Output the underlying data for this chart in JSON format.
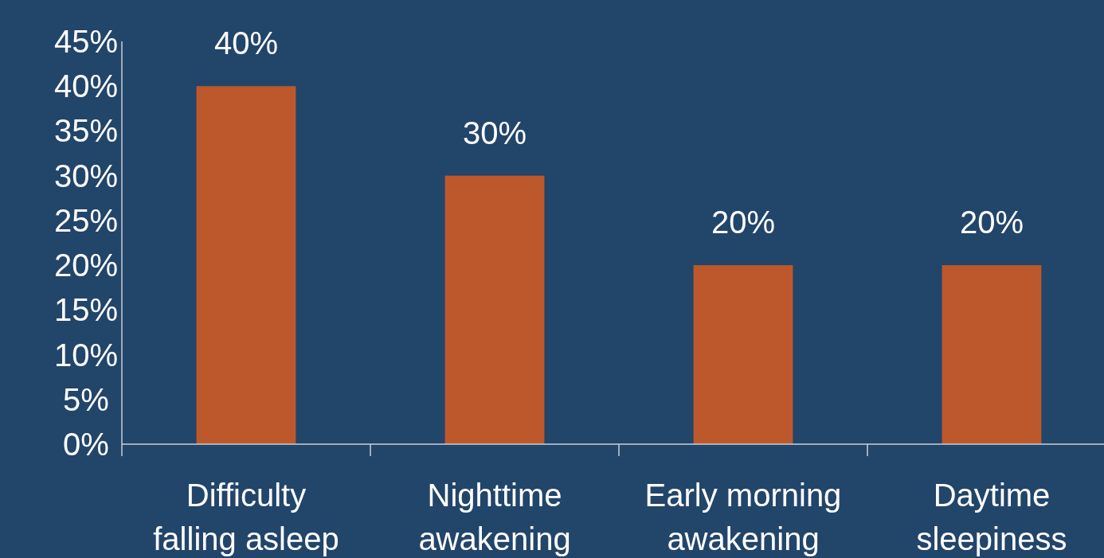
{
  "chart_data": {
    "type": "bar",
    "categories": [
      "Difficulty falling asleep",
      "Nighttime awakening",
      "Early morning awakening",
      "Daytime sleepiness"
    ],
    "values": [
      40,
      30,
      20,
      20
    ],
    "value_labels": [
      "40%",
      "30%",
      "20%",
      "20%"
    ],
    "color": "#bc582c",
    "ylim": [
      0,
      45
    ],
    "yticks": [
      {
        "value": 0,
        "label": "0%"
      },
      {
        "value": 5,
        "label": "5%"
      },
      {
        "value": 10,
        "label": "10%"
      },
      {
        "value": 15,
        "label": "15%"
      },
      {
        "value": 20,
        "label": "20%"
      },
      {
        "value": 25,
        "label": "25%"
      },
      {
        "value": 30,
        "label": "30%"
      },
      {
        "value": 35,
        "label": "35%"
      },
      {
        "value": 40,
        "label": "40%"
      },
      {
        "value": 45,
        "label": "45%"
      }
    ]
  }
}
